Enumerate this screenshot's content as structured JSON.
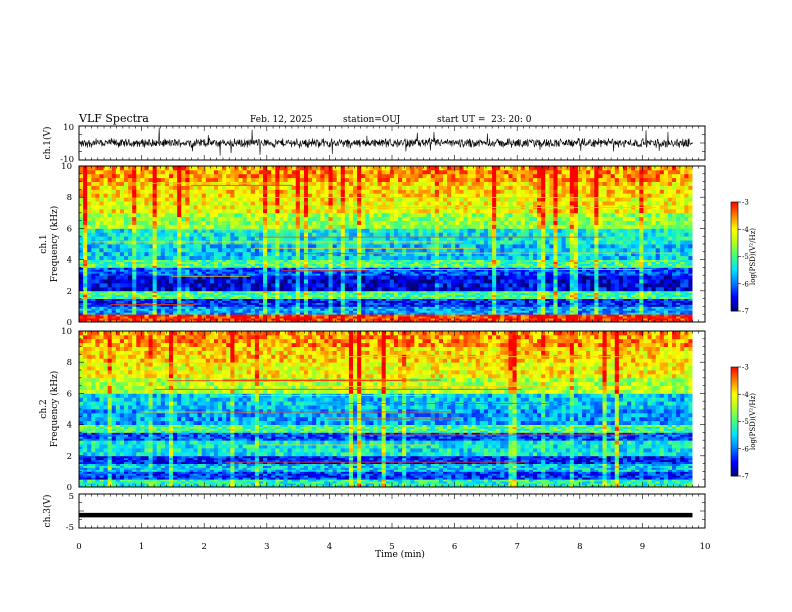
{
  "header": {
    "title": "VLF Spectra",
    "date": "Feb. 12, 2025",
    "station": "station=OUJ",
    "start_ut": "start UT =  23: 20: 0"
  },
  "colors": {
    "spectrogram_colormap": [
      "#00007a",
      "#0000ff",
      "#0078ff",
      "#00e0ff",
      "#40ff80",
      "#b0ff20",
      "#ffff00",
      "#ff8000",
      "#ff0000",
      "#f4c8c8"
    ],
    "trace": "#000000"
  },
  "chart_data": [
    {
      "type": "line",
      "name": "ch.1 waveform panel",
      "ylabel": "ch.1(V)",
      "ylim": [
        -10,
        10
      ],
      "ytick_labels": [
        "10",
        "-10"
      ],
      "xlim": [
        0,
        10
      ],
      "x": [
        0,
        1,
        2,
        3,
        4,
        5,
        6,
        7,
        8,
        9,
        9.8
      ],
      "y": [
        0,
        0,
        0,
        0,
        0,
        0,
        0,
        0,
        0,
        0,
        0
      ],
      "grid": false
    },
    {
      "type": "heatmap",
      "name": "ch.1 spectrogram",
      "ylabel": "ch.1 Frequency (kHz)",
      "ylabel_lines": [
        "ch.1",
        "Frequency (kHz)"
      ],
      "ylim": [
        0,
        10
      ],
      "ytick_labels": [
        "0",
        "2",
        "4",
        "6",
        "8",
        "10"
      ],
      "xlim": [
        0,
        10
      ],
      "data_extent_min": 9.8,
      "colorbar_label": "log(PSD)(V²/Hz)",
      "colorbar_ticks": [
        "-3",
        "-4",
        "-5",
        "-6",
        "-7"
      ],
      "colorbar_range": [
        -7,
        -3
      ],
      "freq_bands_khz": [
        0,
        0.5,
        1,
        1.5,
        2,
        3,
        3.5,
        4,
        5,
        6,
        7,
        8,
        9,
        10
      ],
      "band_levels": [
        -3.2,
        -5.8,
        -6.4,
        -5.0,
        -6.6,
        -6.2,
        -5.0,
        -5.6,
        -5.4,
        -4.6,
        -4.1,
        -3.9,
        -3.6
      ]
    },
    {
      "type": "heatmap",
      "name": "ch.2 spectrogram",
      "ylabel": "ch.2 Frequency (kHz)",
      "ylabel_lines": [
        "ch.2",
        "Frequency (kHz)"
      ],
      "ylim": [
        0,
        10
      ],
      "ytick_labels": [
        "0",
        "2",
        "4",
        "6",
        "8",
        "10"
      ],
      "xlim": [
        0,
        10
      ],
      "data_extent_min": 9.8,
      "colorbar_label": "log(PSD)(V²/Hz)",
      "colorbar_ticks": [
        "-3",
        "-4",
        "-5",
        "-6",
        "-7"
      ],
      "colorbar_range": [
        -7,
        -3
      ],
      "freq_bands_khz": [
        0,
        0.5,
        1,
        1.5,
        2,
        3,
        3.5,
        4,
        5,
        6,
        7,
        8,
        9,
        10
      ],
      "band_levels": [
        -5.2,
        -6.3,
        -5.6,
        -6.4,
        -5.4,
        -6.2,
        -5.0,
        -5.8,
        -5.6,
        -4.5,
        -4.1,
        -3.9,
        -3.6
      ]
    },
    {
      "type": "line",
      "name": "ch.3 waveform panel",
      "ylabel": "ch.3(V)",
      "ylim": [
        -5,
        5
      ],
      "ytick_labels": [
        "5",
        "-5"
      ],
      "xlim": [
        0,
        10
      ],
      "x": [
        0,
        9.8
      ],
      "y": [
        -1.2,
        -1.2
      ],
      "grid": false
    }
  ],
  "x_axis": {
    "label": "Time (min)",
    "tick_labels": [
      "0",
      "1",
      "2",
      "3",
      "4",
      "5",
      "6",
      "7",
      "8",
      "9",
      "10"
    ]
  }
}
